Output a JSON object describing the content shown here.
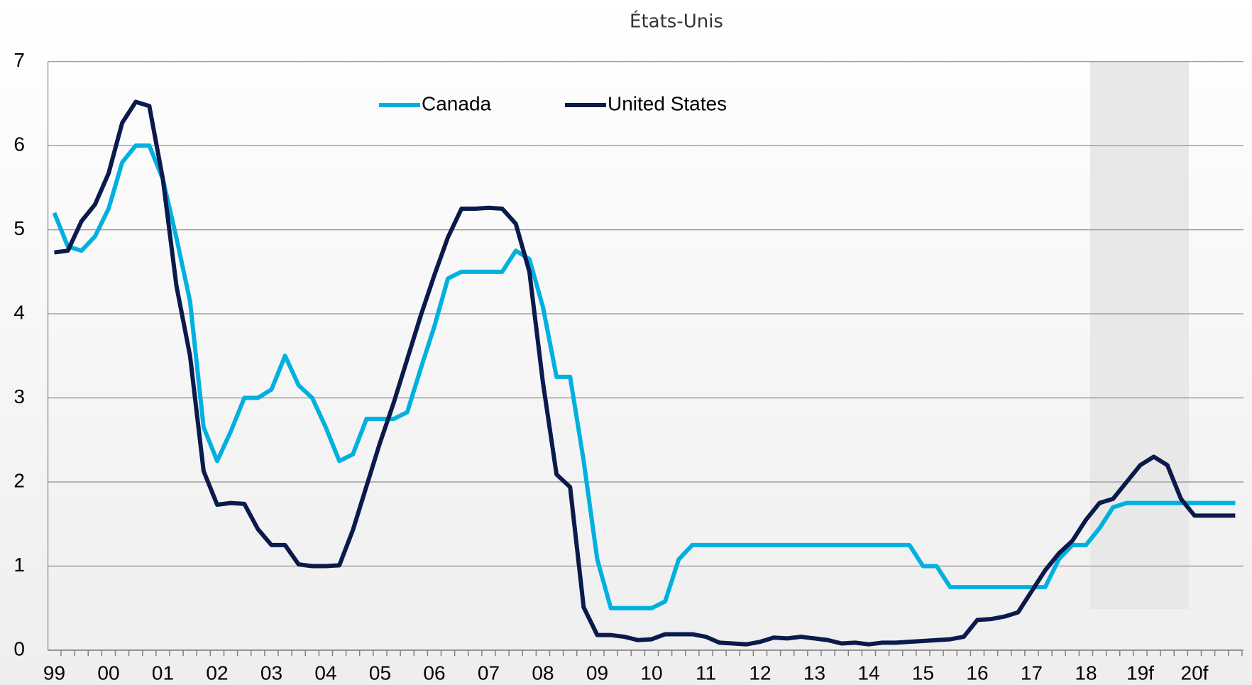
{
  "chart_data": {
    "type": "line",
    "title": "États-Unis",
    "categories": [
      "99",
      null,
      null,
      null,
      "00",
      null,
      null,
      null,
      "01",
      null,
      null,
      null,
      "02",
      null,
      null,
      null,
      "03",
      null,
      null,
      null,
      "04",
      null,
      null,
      null,
      "05",
      null,
      null,
      null,
      "06",
      null,
      null,
      null,
      "07",
      null,
      null,
      null,
      "08",
      null,
      null,
      null,
      "09",
      null,
      null,
      null,
      "10",
      null,
      null,
      null,
      "11",
      null,
      null,
      null,
      "12",
      null,
      null,
      null,
      "13",
      null,
      null,
      null,
      "14",
      null,
      null,
      null,
      "15",
      null,
      null,
      null,
      "16",
      null,
      null,
      null,
      "17",
      null,
      null,
      null,
      "18",
      null,
      null,
      null,
      "19f",
      null,
      null,
      null,
      "20f",
      null,
      null,
      null
    ],
    "series": [
      {
        "name": "Canada",
        "color": "#00b0df",
        "values": [
          5.2,
          4.8,
          4.75,
          4.92,
          5.25,
          5.8,
          6.0,
          6.0,
          5.6,
          4.9,
          4.15,
          2.65,
          2.25,
          2.6,
          3.0,
          3.0,
          3.1,
          3.5,
          3.15,
          3.0,
          2.65,
          2.25,
          2.33,
          2.75,
          2.75,
          2.75,
          2.83,
          3.35,
          3.85,
          4.42,
          4.5,
          4.5,
          4.5,
          4.5,
          4.75,
          4.65,
          4.08,
          3.25,
          3.25,
          2.25,
          1.08,
          0.5,
          0.5,
          0.5,
          0.5,
          0.58,
          1.08,
          1.25,
          1.25,
          1.25,
          1.25,
          1.25,
          1.25,
          1.25,
          1.25,
          1.25,
          1.25,
          1.25,
          1.25,
          1.25,
          1.25,
          1.25,
          1.25,
          1.25,
          1.0,
          1.0,
          0.75,
          0.75,
          0.75,
          0.75,
          0.75,
          0.75,
          0.75,
          0.75,
          1.08,
          1.25,
          1.25,
          1.45,
          1.7,
          1.75,
          1.75,
          1.75,
          1.75,
          1.75,
          1.75,
          1.75,
          1.75,
          1.75
        ]
      },
      {
        "name": "United States",
        "color": "#0b1a4c",
        "values": [
          4.73,
          4.75,
          5.1,
          5.3,
          5.67,
          6.27,
          6.52,
          6.47,
          5.6,
          4.33,
          3.5,
          2.13,
          1.73,
          1.75,
          1.74,
          1.44,
          1.25,
          1.25,
          1.02,
          1.0,
          1.0,
          1.01,
          1.43,
          1.95,
          2.47,
          2.94,
          3.46,
          3.98,
          4.46,
          4.91,
          5.25,
          5.25,
          5.26,
          5.25,
          5.07,
          4.5,
          3.18,
          2.09,
          1.94,
          0.51,
          0.18,
          0.18,
          0.16,
          0.12,
          0.13,
          0.19,
          0.19,
          0.19,
          0.16,
          0.09,
          0.08,
          0.07,
          0.1,
          0.15,
          0.14,
          0.16,
          0.14,
          0.12,
          0.08,
          0.09,
          0.07,
          0.09,
          0.09,
          0.1,
          0.11,
          0.12,
          0.13,
          0.16,
          0.36,
          0.37,
          0.4,
          0.45,
          0.7,
          0.95,
          1.15,
          1.3,
          1.55,
          1.75,
          1.8,
          2.0,
          2.2,
          2.3,
          2.2,
          1.8,
          1.6,
          1.6,
          1.6,
          1.6
        ]
      }
    ],
    "ylim": [
      0,
      7
    ],
    "yticks": [
      0,
      1,
      2,
      3,
      4,
      5,
      6,
      7
    ],
    "grid": true,
    "legend": "top"
  }
}
